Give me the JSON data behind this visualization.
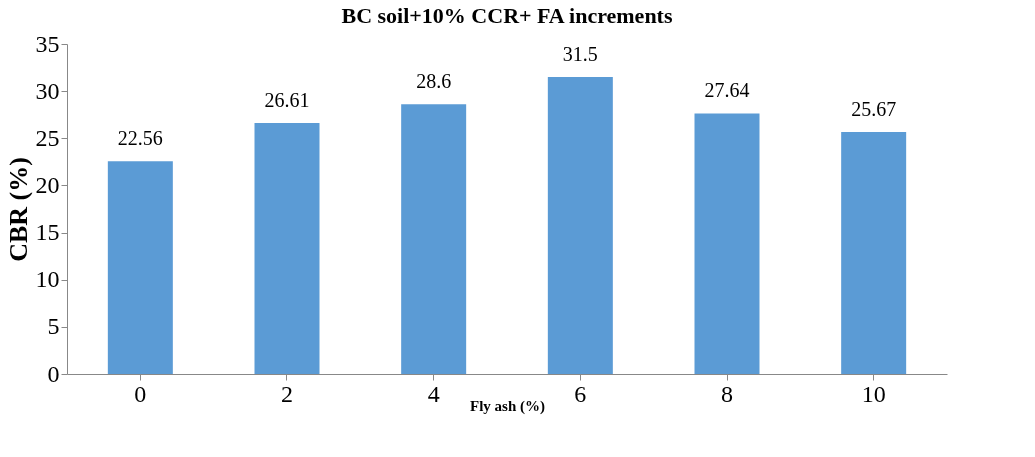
{
  "chart_data": {
    "type": "bar",
    "title": "BC soil+10% CCR+ FA increments",
    "xlabel": "Fly ash (%)",
    "ylabel": "CBR (%)",
    "categories": [
      "0",
      "2",
      "4",
      "6",
      "8",
      "10"
    ],
    "values": [
      22.56,
      26.61,
      28.6,
      31.5,
      27.64,
      25.67
    ],
    "color": "#5b9bd5",
    "ylim": [
      0,
      35
    ],
    "yticks": [
      0,
      5,
      10,
      15,
      20,
      25,
      30,
      35
    ],
    "data_labels": true,
    "grid": false
  }
}
